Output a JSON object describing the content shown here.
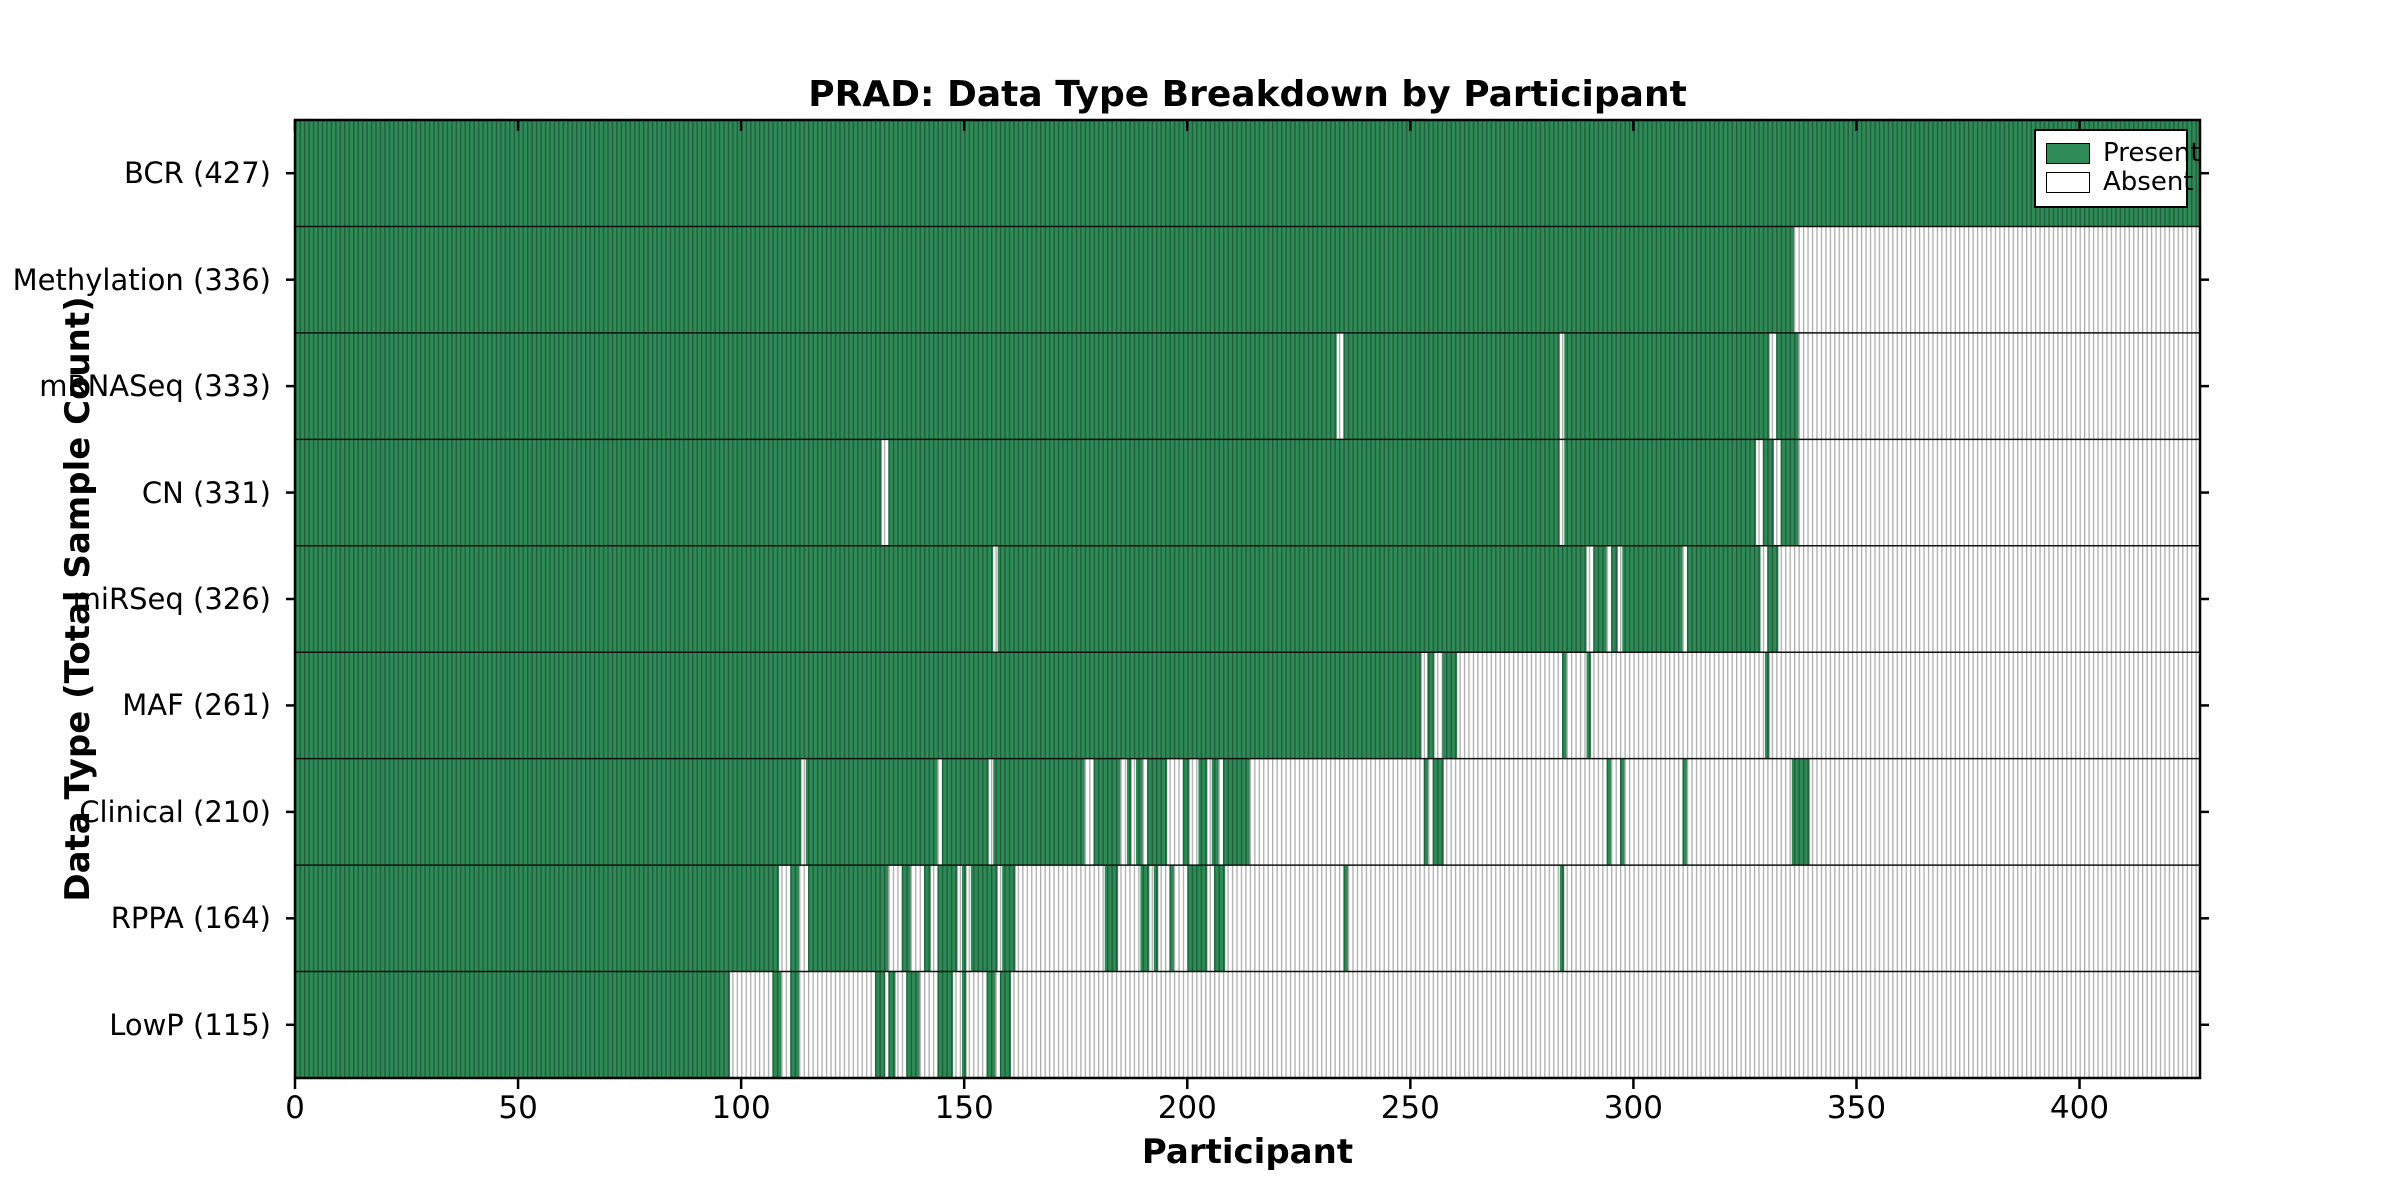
{
  "chart_data": {
    "type": "heatmap",
    "title": "PRAD: Data Type Breakdown by Participant",
    "xlabel": "Participant",
    "ylabel": "Data Type (Total Sample Count)",
    "xlim": [
      0,
      427
    ],
    "x_ticks": [
      0,
      50,
      100,
      150,
      200,
      250,
      300,
      350,
      400
    ],
    "grid": false,
    "legend": {
      "position": "upper right",
      "entries": [
        {
          "label": "Present",
          "color": "#2e8b57"
        },
        {
          "label": "Absent",
          "color": "#ffffff"
        }
      ]
    },
    "colors": {
      "present_fill": "#2e8b57",
      "present_edge": "#1d5636",
      "absent_fill": "#ffffff",
      "absent_edge": "#adadad",
      "frame": "#000000",
      "background": "#ffffff"
    },
    "rows": [
      {
        "label": "BCR",
        "count": 427,
        "tick_label": "BCR (427)",
        "present_segments": [
          [
            0,
            427
          ]
        ]
      },
      {
        "label": "Methylation",
        "count": 336,
        "tick_label": "Methylation (336)",
        "present_segments": [
          [
            0,
            336
          ]
        ]
      },
      {
        "label": "mRNASeq",
        "count": 333,
        "tick_label": "mRNASeq (333)",
        "present_segments": [
          [
            0,
            233.5
          ],
          [
            235,
            283.5
          ],
          [
            284.5,
            330.5
          ],
          [
            332,
            337
          ]
        ]
      },
      {
        "label": "CN",
        "count": 331,
        "tick_label": "CN (331)",
        "present_segments": [
          [
            0,
            131.5
          ],
          [
            133,
            283.5
          ],
          [
            284.5,
            327.5
          ],
          [
            329,
            331.5
          ],
          [
            333,
            337
          ]
        ]
      },
      {
        "label": "miRSeq",
        "count": 326,
        "tick_label": "miRSeq (326)",
        "present_segments": [
          [
            0,
            156.5
          ],
          [
            157.5,
            289.5
          ],
          [
            291,
            294
          ],
          [
            295,
            296.5
          ],
          [
            297.5,
            311
          ],
          [
            312,
            328.5
          ],
          [
            330,
            332.5
          ]
        ]
      },
      {
        "label": "MAF",
        "count": 261,
        "tick_label": "MAF (261)",
        "present_segments": [
          [
            0,
            252.5
          ],
          [
            253.8,
            255.4
          ],
          [
            257.2,
            260.5
          ],
          [
            284,
            285
          ],
          [
            289.5,
            290.5
          ],
          [
            329.5,
            330.5
          ]
        ]
      },
      {
        "label": "Clinical",
        "count": 210,
        "tick_label": "Clinical (210)",
        "present_segments": [
          [
            0,
            113.5
          ],
          [
            114.5,
            144
          ],
          [
            145,
            155.5
          ],
          [
            156.5,
            177
          ],
          [
            179,
            185
          ],
          [
            186.5,
            187.5
          ],
          [
            188.5,
            190
          ],
          [
            191,
            195.5
          ],
          [
            199,
            200.5
          ],
          [
            202.5,
            204.5
          ],
          [
            205.5,
            207
          ],
          [
            208,
            214
          ],
          [
            253,
            254
          ],
          [
            255,
            257.5
          ],
          [
            294,
            295
          ],
          [
            297,
            298
          ],
          [
            311,
            312
          ],
          [
            335.5,
            339.5
          ]
        ]
      },
      {
        "label": "RPPA",
        "count": 164,
        "tick_label": "RPPA (164)",
        "present_segments": [
          [
            0,
            108.5
          ],
          [
            111,
            113
          ],
          [
            115,
            133
          ],
          [
            136,
            138
          ],
          [
            141,
            142.5
          ],
          [
            144,
            148.5
          ],
          [
            149.5,
            150.5
          ],
          [
            151.5,
            157.5
          ],
          [
            158.5,
            161.5
          ],
          [
            181.5,
            184.5
          ],
          [
            189.5,
            191.5
          ],
          [
            192.5,
            193.5
          ],
          [
            196,
            197
          ],
          [
            200,
            204.5
          ],
          [
            206,
            208.5
          ],
          [
            235,
            236
          ],
          [
            283.5,
            284.5
          ]
        ]
      },
      {
        "label": "LowP",
        "count": 115,
        "tick_label": "LowP (115)",
        "present_segments": [
          [
            0,
            97.5
          ],
          [
            107,
            109
          ],
          [
            111,
            113
          ],
          [
            130,
            132.3
          ],
          [
            133,
            134.6
          ],
          [
            137,
            140
          ],
          [
            144,
            147.5
          ],
          [
            149.5,
            150.5
          ],
          [
            155,
            157
          ],
          [
            158,
            160.5
          ]
        ]
      }
    ]
  }
}
